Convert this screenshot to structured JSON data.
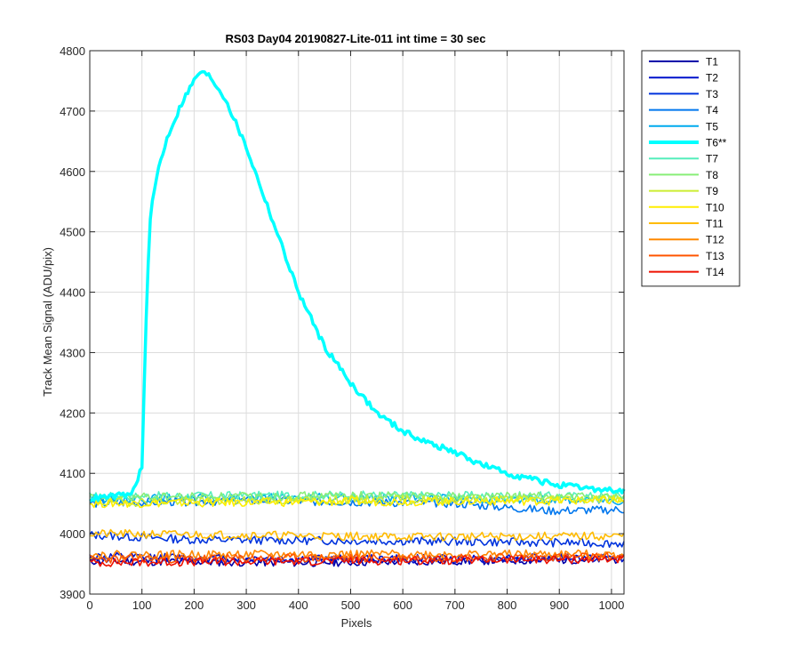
{
  "chart_data": {
    "type": "line",
    "title": "RS03 Day04 20190827-Lite-011 int time = 30 sec",
    "xlabel": "Pixels",
    "ylabel": "Track Mean Signal (ADU/pix)",
    "xlim": [
      0,
      1024
    ],
    "ylim": [
      3900,
      4800
    ],
    "xticks": [
      0,
      100,
      200,
      300,
      400,
      500,
      600,
      700,
      800,
      900,
      1000
    ],
    "yticks": [
      3900,
      4000,
      4100,
      4200,
      4300,
      4400,
      4500,
      4600,
      4700,
      4800
    ],
    "grid": true,
    "legend_position": "outside-top-right",
    "noise_amplitude_adu": 7,
    "x_step": 4,
    "series": [
      {
        "name": "T1",
        "color": "#0000AA",
        "highlight": false,
        "seed": 11,
        "profile": {
          "x": [
            0,
            400,
            1024
          ],
          "y": [
            3955,
            3952,
            3958
          ]
        }
      },
      {
        "name": "T2",
        "color": "#0011CC",
        "highlight": false,
        "seed": 12,
        "profile": {
          "x": [
            0,
            400,
            1024
          ],
          "y": [
            3962,
            3958,
            3960
          ]
        }
      },
      {
        "name": "T3",
        "color": "#0033DD",
        "highlight": false,
        "seed": 13,
        "profile": {
          "x": [
            0,
            200,
            600,
            1024
          ],
          "y": [
            3998,
            3990,
            3988,
            3984
          ]
        }
      },
      {
        "name": "T4",
        "color": "#0077EE",
        "highlight": false,
        "seed": 14,
        "profile": {
          "x": [
            0,
            300,
            700,
            880,
            1024
          ],
          "y": [
            4050,
            4055,
            4050,
            4038,
            4040
          ]
        }
      },
      {
        "name": "T5",
        "color": "#00AAEE",
        "highlight": false,
        "seed": 15,
        "profile": {
          "x": [
            0,
            500,
            1024
          ],
          "y": [
            4058,
            4060,
            4055
          ]
        }
      },
      {
        "name": "T6**",
        "color": "#00FFFF",
        "highlight": true,
        "seed": 16,
        "profile": {
          "x": [
            0,
            80,
            100,
            108,
            115,
            130,
            150,
            180,
            210,
            230,
            260,
            300,
            350,
            400,
            450,
            500,
            550,
            600,
            650,
            700,
            750,
            800,
            850,
            900,
            950,
            1024
          ],
          "y": [
            4058,
            4065,
            4110,
            4350,
            4520,
            4600,
            4660,
            4720,
            4765,
            4758,
            4720,
            4640,
            4520,
            4400,
            4310,
            4250,
            4200,
            4170,
            4150,
            4135,
            4115,
            4100,
            4090,
            4080,
            4075,
            4070
          ]
        }
      },
      {
        "name": "T7",
        "color": "#55EEBB",
        "highlight": false,
        "seed": 17,
        "profile": {
          "x": [
            0,
            500,
            1024
          ],
          "y": [
            4062,
            4064,
            4062
          ]
        }
      },
      {
        "name": "T8",
        "color": "#88EE77",
        "highlight": false,
        "seed": 18,
        "profile": {
          "x": [
            0,
            500,
            1024
          ],
          "y": [
            4060,
            4063,
            4061
          ]
        }
      },
      {
        "name": "T9",
        "color": "#CCEE33",
        "highlight": false,
        "seed": 19,
        "profile": {
          "x": [
            0,
            500,
            1024
          ],
          "y": [
            4052,
            4056,
            4058
          ]
        }
      },
      {
        "name": "T10",
        "color": "#FFEE00",
        "highlight": false,
        "seed": 20,
        "profile": {
          "x": [
            0,
            500,
            1024
          ],
          "y": [
            4050,
            4053,
            4055
          ]
        }
      },
      {
        "name": "T11",
        "color": "#FFBB00",
        "highlight": false,
        "seed": 21,
        "profile": {
          "x": [
            0,
            300,
            600,
            1024
          ],
          "y": [
            4000,
            3998,
            3995,
            3996
          ]
        }
      },
      {
        "name": "T12",
        "color": "#FF8800",
        "highlight": false,
        "seed": 22,
        "profile": {
          "x": [
            0,
            500,
            1024
          ],
          "y": [
            3965,
            3966,
            3966
          ]
        }
      },
      {
        "name": "T13",
        "color": "#FF5500",
        "highlight": false,
        "seed": 23,
        "profile": {
          "x": [
            0,
            500,
            1024
          ],
          "y": [
            3958,
            3960,
            3962
          ]
        }
      },
      {
        "name": "T14",
        "color": "#EE1100",
        "highlight": false,
        "seed": 24,
        "profile": {
          "x": [
            0,
            500,
            1024
          ],
          "y": [
            3952,
            3955,
            3958
          ]
        }
      }
    ]
  }
}
